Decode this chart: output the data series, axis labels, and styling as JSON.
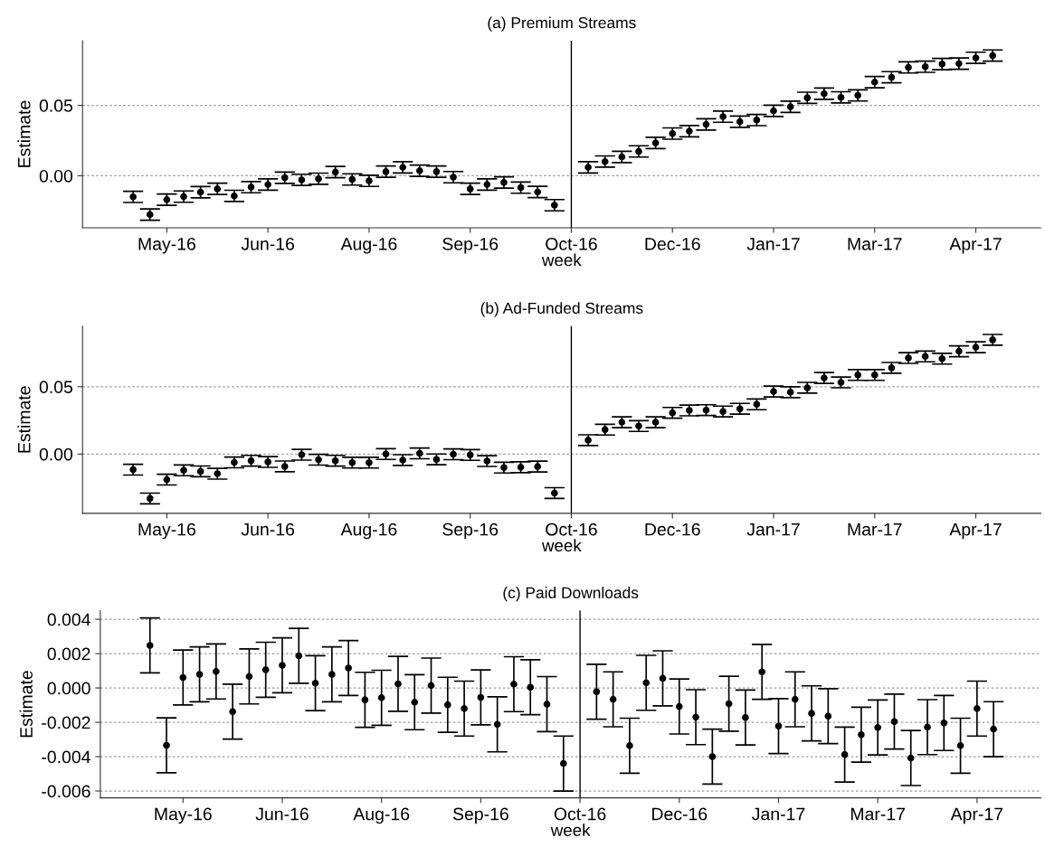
{
  "chart_data": [
    {
      "type": "scatter",
      "title": "(a) Premium Streams",
      "xlabel": "week",
      "ylabel": "Estimate",
      "marker": "circle",
      "grid": "y",
      "color": "#000000",
      "x": [
        "2016-05-01",
        "2016-05-08",
        "2016-05-15",
        "2016-05-22",
        "2016-05-29",
        "2016-06-05",
        "2016-06-12",
        "2016-06-19",
        "2016-06-26",
        "2016-07-03",
        "2016-07-10",
        "2016-07-17",
        "2016-07-24",
        "2016-07-31",
        "2016-08-07",
        "2016-08-14",
        "2016-08-21",
        "2016-08-28",
        "2016-09-04",
        "2016-09-11",
        "2016-09-18",
        "2016-09-25",
        "2016-10-02",
        "2016-10-09",
        "2016-10-16",
        "2016-10-23",
        "2016-11-06",
        "2016-11-13",
        "2016-11-20",
        "2016-11-27",
        "2016-12-04",
        "2016-12-11",
        "2016-12-18",
        "2016-12-25",
        "2017-01-01",
        "2017-01-08",
        "2017-01-15",
        "2017-01-22",
        "2017-01-29",
        "2017-02-05",
        "2017-02-12",
        "2017-02-19",
        "2017-02-26",
        "2017-03-05",
        "2017-03-12",
        "2017-03-19",
        "2017-03-26",
        "2017-04-02",
        "2017-04-09",
        "2017-04-16",
        "2017-04-23"
      ],
      "values": [
        -0.015,
        -0.0276,
        -0.017,
        -0.0148,
        -0.0117,
        -0.0093,
        -0.0143,
        -0.0081,
        -0.0062,
        -0.0014,
        -0.0029,
        -0.0021,
        0.0026,
        -0.0026,
        -0.0036,
        0.0029,
        0.006,
        0.0036,
        0.0029,
        -0.001,
        -0.0093,
        -0.0062,
        -0.0048,
        -0.0084,
        -0.0115,
        -0.0209,
        0.006,
        0.0101,
        0.0134,
        0.0173,
        0.0233,
        0.03,
        0.0317,
        0.0365,
        0.042,
        0.0384,
        0.0396,
        0.0461,
        0.049,
        0.0554,
        0.0583,
        0.0557,
        0.0571,
        0.0665,
        0.07,
        0.077,
        0.0775,
        0.0794,
        0.0797,
        0.0838,
        0.0854
      ],
      "errors": [
        0.004,
        0.004,
        0.004,
        0.004,
        0.004,
        0.004,
        0.004,
        0.004,
        0.004,
        0.004,
        0.004,
        0.004,
        0.004,
        0.004,
        0.004,
        0.004,
        0.004,
        0.004,
        0.004,
        0.004,
        0.004,
        0.004,
        0.004,
        0.004,
        0.004,
        0.004,
        0.004,
        0.004,
        0.004,
        0.004,
        0.004,
        0.004,
        0.004,
        0.004,
        0.004,
        0.004,
        0.004,
        0.004,
        0.004,
        0.004,
        0.004,
        0.004,
        0.004,
        0.004,
        0.004,
        0.004,
        0.004,
        0.004,
        0.004,
        0.004,
        0.004
      ],
      "xlim": [
        "2016-04-10",
        "2017-05-13"
      ],
      "xticks": [
        {
          "value": "2016-05-15",
          "label": "May-16"
        },
        {
          "value": "2016-06-26",
          "label": "Jun-16"
        },
        {
          "value": "2016-08-07",
          "label": "Aug-16"
        },
        {
          "value": "2016-09-18",
          "label": "Sep-16"
        },
        {
          "value": "2016-10-30",
          "label": "Oct-16"
        },
        {
          "value": "2016-12-11",
          "label": "Dec-16"
        },
        {
          "value": "2017-01-22",
          "label": "Jan-17"
        },
        {
          "value": "2017-03-05",
          "label": "Mar-17"
        },
        {
          "value": "2017-04-16",
          "label": "Apr-17"
        }
      ],
      "ylim": [
        -0.037,
        0.096
      ],
      "yticks": [
        {
          "value": 0,
          "label": "0.00"
        },
        {
          "value": 0.05,
          "label": "0.05"
        }
      ],
      "ref_lines": [
        {
          "axis": "x",
          "value": "2016-10-30",
          "color": "#000000",
          "line_style": "solid"
        }
      ]
    },
    {
      "type": "scatter",
      "title": "(b) Ad-Funded Streams",
      "xlabel": "week",
      "ylabel": "Estimate",
      "marker": "circle",
      "grid": "y",
      "color": "#000000",
      "x": [
        "2016-05-01",
        "2016-05-08",
        "2016-05-15",
        "2016-05-22",
        "2016-05-29",
        "2016-06-05",
        "2016-06-12",
        "2016-06-19",
        "2016-06-26",
        "2016-07-03",
        "2016-07-10",
        "2016-07-17",
        "2016-07-24",
        "2016-07-31",
        "2016-08-07",
        "2016-08-14",
        "2016-08-21",
        "2016-08-28",
        "2016-09-04",
        "2016-09-11",
        "2016-09-18",
        "2016-09-25",
        "2016-10-02",
        "2016-10-09",
        "2016-10-16",
        "2016-10-23",
        "2016-11-06",
        "2016-11-13",
        "2016-11-20",
        "2016-11-27",
        "2016-12-04",
        "2016-12-11",
        "2016-12-18",
        "2016-12-25",
        "2017-01-01",
        "2017-01-08",
        "2017-01-15",
        "2017-01-22",
        "2017-01-29",
        "2017-02-05",
        "2017-02-12",
        "2017-02-19",
        "2017-02-26",
        "2017-03-05",
        "2017-03-12",
        "2017-03-19",
        "2017-03-26",
        "2017-04-02",
        "2017-04-09",
        "2017-04-16",
        "2017-04-23"
      ],
      "values": [
        -0.0116,
        -0.033,
        -0.019,
        -0.0121,
        -0.0129,
        -0.0146,
        -0.0062,
        -0.005,
        -0.0059,
        -0.0092,
        -0.0005,
        -0.0042,
        -0.005,
        -0.0064,
        -0.0064,
        0.0,
        -0.0045,
        0.0005,
        -0.004,
        -0.0002,
        -0.0007,
        -0.0052,
        -0.0101,
        -0.0098,
        -0.0093,
        -0.029,
        0.0103,
        0.0181,
        0.0236,
        0.0208,
        0.0236,
        0.0306,
        0.0324,
        0.0326,
        0.0316,
        0.0336,
        0.0369,
        0.0464,
        0.0459,
        0.0492,
        0.0565,
        0.0532,
        0.0587,
        0.0587,
        0.064,
        0.0713,
        0.0725,
        0.0708,
        0.0763,
        0.0793,
        0.0848
      ],
      "errors": [
        0.004,
        0.004,
        0.004,
        0.004,
        0.004,
        0.004,
        0.004,
        0.004,
        0.004,
        0.004,
        0.004,
        0.004,
        0.004,
        0.004,
        0.004,
        0.004,
        0.004,
        0.004,
        0.004,
        0.004,
        0.004,
        0.004,
        0.004,
        0.004,
        0.004,
        0.004,
        0.004,
        0.004,
        0.004,
        0.004,
        0.004,
        0.004,
        0.004,
        0.004,
        0.004,
        0.004,
        0.004,
        0.004,
        0.004,
        0.004,
        0.004,
        0.004,
        0.004,
        0.004,
        0.004,
        0.004,
        0.004,
        0.004,
        0.004,
        0.004,
        0.004
      ],
      "xlim": [
        "2016-04-10",
        "2017-05-13"
      ],
      "xticks": [
        {
          "value": "2016-05-15",
          "label": "May-16"
        },
        {
          "value": "2016-06-26",
          "label": "Jun-16"
        },
        {
          "value": "2016-08-07",
          "label": "Aug-16"
        },
        {
          "value": "2016-09-18",
          "label": "Sep-16"
        },
        {
          "value": "2016-10-30",
          "label": "Oct-16"
        },
        {
          "value": "2016-12-11",
          "label": "Dec-16"
        },
        {
          "value": "2017-01-22",
          "label": "Jan-17"
        },
        {
          "value": "2017-03-05",
          "label": "Mar-17"
        },
        {
          "value": "2017-04-16",
          "label": "Apr-17"
        }
      ],
      "ylim": [
        -0.044,
        0.095
      ],
      "yticks": [
        {
          "value": 0,
          "label": "0.00"
        },
        {
          "value": 0.05,
          "label": "0.05"
        }
      ],
      "ref_lines": [
        {
          "axis": "x",
          "value": "2016-10-30",
          "color": "#000000",
          "line_style": "solid"
        }
      ]
    },
    {
      "type": "scatter",
      "title": "(c) Paid Downloads",
      "xlabel": "week",
      "ylabel": "Estimate",
      "marker": "circle",
      "grid": "y",
      "color": "#000000",
      "x": [
        "2016-05-01",
        "2016-05-08",
        "2016-05-15",
        "2016-05-22",
        "2016-05-29",
        "2016-06-05",
        "2016-06-12",
        "2016-06-19",
        "2016-06-26",
        "2016-07-03",
        "2016-07-10",
        "2016-07-17",
        "2016-07-24",
        "2016-07-31",
        "2016-08-07",
        "2016-08-14",
        "2016-08-21",
        "2016-08-28",
        "2016-09-04",
        "2016-09-11",
        "2016-09-18",
        "2016-09-25",
        "2016-10-02",
        "2016-10-09",
        "2016-10-16",
        "2016-10-23",
        "2016-11-06",
        "2016-11-13",
        "2016-11-20",
        "2016-11-27",
        "2016-12-04",
        "2016-12-11",
        "2016-12-18",
        "2016-12-25",
        "2017-01-01",
        "2017-01-08",
        "2017-01-15",
        "2017-01-22",
        "2017-01-29",
        "2017-02-05",
        "2017-02-12",
        "2017-02-19",
        "2017-02-26",
        "2017-03-05",
        "2017-03-12",
        "2017-03-19",
        "2017-03-26",
        "2017-04-02",
        "2017-04-09",
        "2017-04-16",
        "2017-04-23"
      ],
      "values": [
        0.00248,
        -0.00334,
        0.00061,
        0.00079,
        0.00096,
        -0.00138,
        0.00067,
        0.00106,
        0.00132,
        0.00187,
        0.00028,
        0.00079,
        0.00116,
        -0.00069,
        -0.00057,
        0.00024,
        -0.00083,
        0.00014,
        -0.00098,
        -0.0012,
        -0.00055,
        -0.00212,
        0.00022,
        4e-05,
        -0.00094,
        -0.0044,
        -0.00022,
        -0.00066,
        -0.00336,
        0.0003,
        0.00056,
        -0.00108,
        -0.0017,
        -0.004,
        -0.00092,
        -0.00172,
        0.00094,
        -0.00222,
        -0.00066,
        -0.00148,
        -0.00164,
        -0.00388,
        -0.00272,
        -0.0023,
        -0.00196,
        -0.00408,
        -0.00228,
        -0.00204,
        -0.00336,
        -0.0012,
        -0.0024
      ],
      "errors": [
        0.0016,
        0.0016,
        0.0016,
        0.0016,
        0.0016,
        0.0016,
        0.0016,
        0.0016,
        0.0016,
        0.0016,
        0.0016,
        0.0016,
        0.0016,
        0.0016,
        0.0016,
        0.0016,
        0.0016,
        0.0016,
        0.0016,
        0.0016,
        0.0016,
        0.0016,
        0.0016,
        0.0016,
        0.0016,
        0.0016,
        0.0016,
        0.0016,
        0.0016,
        0.0016,
        0.0016,
        0.0016,
        0.0016,
        0.0016,
        0.0016,
        0.0016,
        0.0016,
        0.0016,
        0.0016,
        0.0016,
        0.0016,
        0.0016,
        0.0016,
        0.0016,
        0.0016,
        0.0016,
        0.0016,
        0.0016,
        0.0016,
        0.0016,
        0.0016
      ],
      "xlim": [
        "2016-04-10",
        "2017-05-13"
      ],
      "xticks": [
        {
          "value": "2016-05-15",
          "label": "May-16"
        },
        {
          "value": "2016-06-26",
          "label": "Jun-16"
        },
        {
          "value": "2016-08-07",
          "label": "Aug-16"
        },
        {
          "value": "2016-09-18",
          "label": "Sep-16"
        },
        {
          "value": "2016-10-30",
          "label": "Oct-16"
        },
        {
          "value": "2016-12-11",
          "label": "Dec-16"
        },
        {
          "value": "2017-01-22",
          "label": "Jan-17"
        },
        {
          "value": "2017-03-05",
          "label": "Mar-17"
        },
        {
          "value": "2017-04-16",
          "label": "Apr-17"
        }
      ],
      "ylim": [
        -0.0064,
        0.0045
      ],
      "yticks": [
        {
          "value": -0.006,
          "label": "-0.006"
        },
        {
          "value": -0.004,
          "label": "-0.004"
        },
        {
          "value": -0.002,
          "label": "-0.002"
        },
        {
          "value": 0,
          "label": "0.000"
        },
        {
          "value": 0.002,
          "label": "0.002"
        },
        {
          "value": 0.004,
          "label": "0.004"
        }
      ],
      "ref_lines": [
        {
          "axis": "x",
          "value": "2016-10-30",
          "color": "#000000",
          "line_style": "solid"
        }
      ]
    }
  ]
}
